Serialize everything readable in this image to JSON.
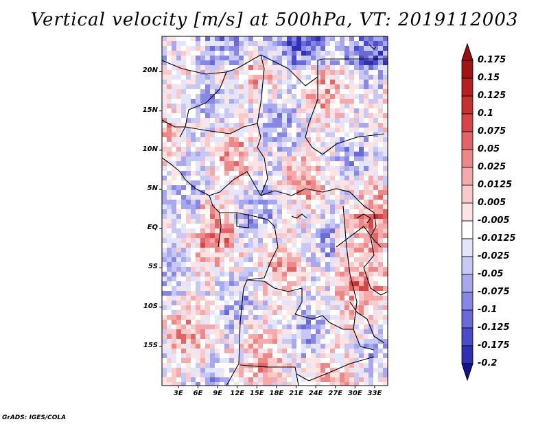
{
  "title": "Vertical velocity [m/s] at 500hPa, VT: 2019112003",
  "credit": "GrADS: IGES/COLA",
  "map": {
    "lat_ticks": [
      {
        "value": 20,
        "label": "20N"
      },
      {
        "value": 15,
        "label": "15N"
      },
      {
        "value": 10,
        "label": "10N"
      },
      {
        "value": 5,
        "label": "5N"
      },
      {
        "value": 0,
        "label": "EQ"
      },
      {
        "value": -5,
        "label": "5S"
      },
      {
        "value": -10,
        "label": "10S"
      },
      {
        "value": -15,
        "label": "15S"
      }
    ],
    "lon_ticks": [
      {
        "value": 3,
        "label": "3E"
      },
      {
        "value": 6,
        "label": "6E"
      },
      {
        "value": 9,
        "label": "9E"
      },
      {
        "value": 12,
        "label": "12E"
      },
      {
        "value": 15,
        "label": "15E"
      },
      {
        "value": 18,
        "label": "18E"
      },
      {
        "value": 21,
        "label": "21E"
      },
      {
        "value": 24,
        "label": "24E"
      },
      {
        "value": 27,
        "label": "27E"
      },
      {
        "value": 30,
        "label": "30E"
      },
      {
        "value": 33,
        "label": "33E"
      }
    ],
    "lon_range": [
      0.5,
      35
    ],
    "lat_range": [
      -20,
      24.5
    ]
  },
  "colorbar": {
    "levels": [
      {
        "label": "0.175",
        "color": "#a11414"
      },
      {
        "label": "0.15",
        "color": "#b42020"
      },
      {
        "label": "0.125",
        "color": "#c63030"
      },
      {
        "label": "0.1",
        "color": "#d64646"
      },
      {
        "label": "0.075",
        "color": "#e26464"
      },
      {
        "label": "0.05",
        "color": "#ec8888"
      },
      {
        "label": "0.025",
        "color": "#f4aaaa"
      },
      {
        "label": "0.0125",
        "color": "#facaca"
      },
      {
        "label": "0.005",
        "color": "#fde4e4"
      },
      {
        "label": "-0.005",
        "color": "#ffffff"
      },
      {
        "label": "-0.0125",
        "color": "#e4e4fb"
      },
      {
        "label": "-0.025",
        "color": "#c8c8f5"
      },
      {
        "label": "-0.05",
        "color": "#a8a8ee"
      },
      {
        "label": "-0.075",
        "color": "#8888e4"
      },
      {
        "label": "-0.1",
        "color": "#6a6ad8"
      },
      {
        "label": "-0.125",
        "color": "#4c4cc8"
      },
      {
        "label": "-0.175",
        "color": "#3030b4"
      },
      {
        "label": "-0.2",
        "color": "#18189c"
      }
    ],
    "top_color": "#9a1010",
    "bottom_color": "#12128e",
    "neutral_color": "#ffffff"
  }
}
